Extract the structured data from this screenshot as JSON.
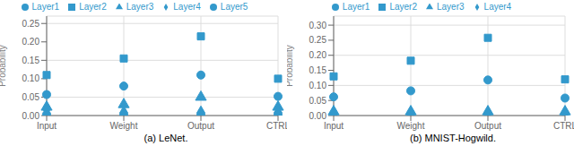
{
  "chart_data": [
    {
      "type": "scatter",
      "title": "(a) LeNet.",
      "categories": [
        "Input",
        "Weight",
        "Output",
        "CTRL"
      ],
      "series": [
        {
          "name": "Layer1",
          "marker": "circle",
          "color": "#3399cc",
          "values": [
            0.057,
            0.08,
            0.11,
            0.052
          ]
        },
        {
          "name": "Layer2",
          "marker": "square",
          "color": "#3399cc",
          "values": [
            0.11,
            0.155,
            0.215,
            0.1
          ]
        },
        {
          "name": "Layer3",
          "marker": "triangle",
          "color": "#3399cc",
          "values": [
            0.023,
            0.03,
            0.05,
            0.023
          ]
        },
        {
          "name": "Layer4",
          "marker": "diamond",
          "color": "#3399cc",
          "values": [
            0.018,
            0.008,
            0.008,
            0.008
          ]
        },
        {
          "name": "Layer5",
          "marker": "circle",
          "color": "#3399cc",
          "values": [
            0.003,
            0.003,
            0.003,
            0.003
          ]
        }
      ],
      "y_label": "Probability",
      "ylim": [
        0,
        0.27
      ],
      "yticks": [
        {
          "value": 0,
          "label": "0.00"
        },
        0.05,
        {
          "value": 0.1,
          "label": "0.10"
        },
        0.15,
        {
          "value": 0.2,
          "label": "0.20"
        },
        0.25
      ],
      "grid": true,
      "legend": "top"
    },
    {
      "type": "scatter",
      "title": "(b) MNIST-Hogwild.",
      "categories": [
        "Input",
        "Weight",
        "Output",
        "CTRL"
      ],
      "series": [
        {
          "name": "Layer1",
          "marker": "circle",
          "color": "#3399cc",
          "values": [
            0.062,
            0.082,
            0.118,
            0.058
          ]
        },
        {
          "name": "Layer2",
          "marker": "square",
          "color": "#3399cc",
          "values": [
            0.13,
            0.182,
            0.258,
            0.12
          ]
        },
        {
          "name": "Layer3",
          "marker": "triangle",
          "color": "#3399cc",
          "values": [
            0.013,
            0.013,
            0.013,
            0.013
          ]
        },
        {
          "name": "Layer4",
          "marker": "diamond",
          "color": "#3399cc",
          "values": [
            0.005,
            0.005,
            0.005,
            0.005
          ]
        }
      ],
      "y_label": "Probability",
      "ylim": [
        0,
        0.33
      ],
      "yticks": [
        {
          "value": 0,
          "label": "0.00"
        },
        0.05,
        {
          "value": 0.1,
          "label": "0.10"
        },
        0.15,
        {
          "value": 0.2,
          "label": "0.20"
        },
        0.25,
        {
          "value": 0.3,
          "label": "0.30"
        }
      ],
      "grid": true,
      "legend": "top"
    }
  ]
}
